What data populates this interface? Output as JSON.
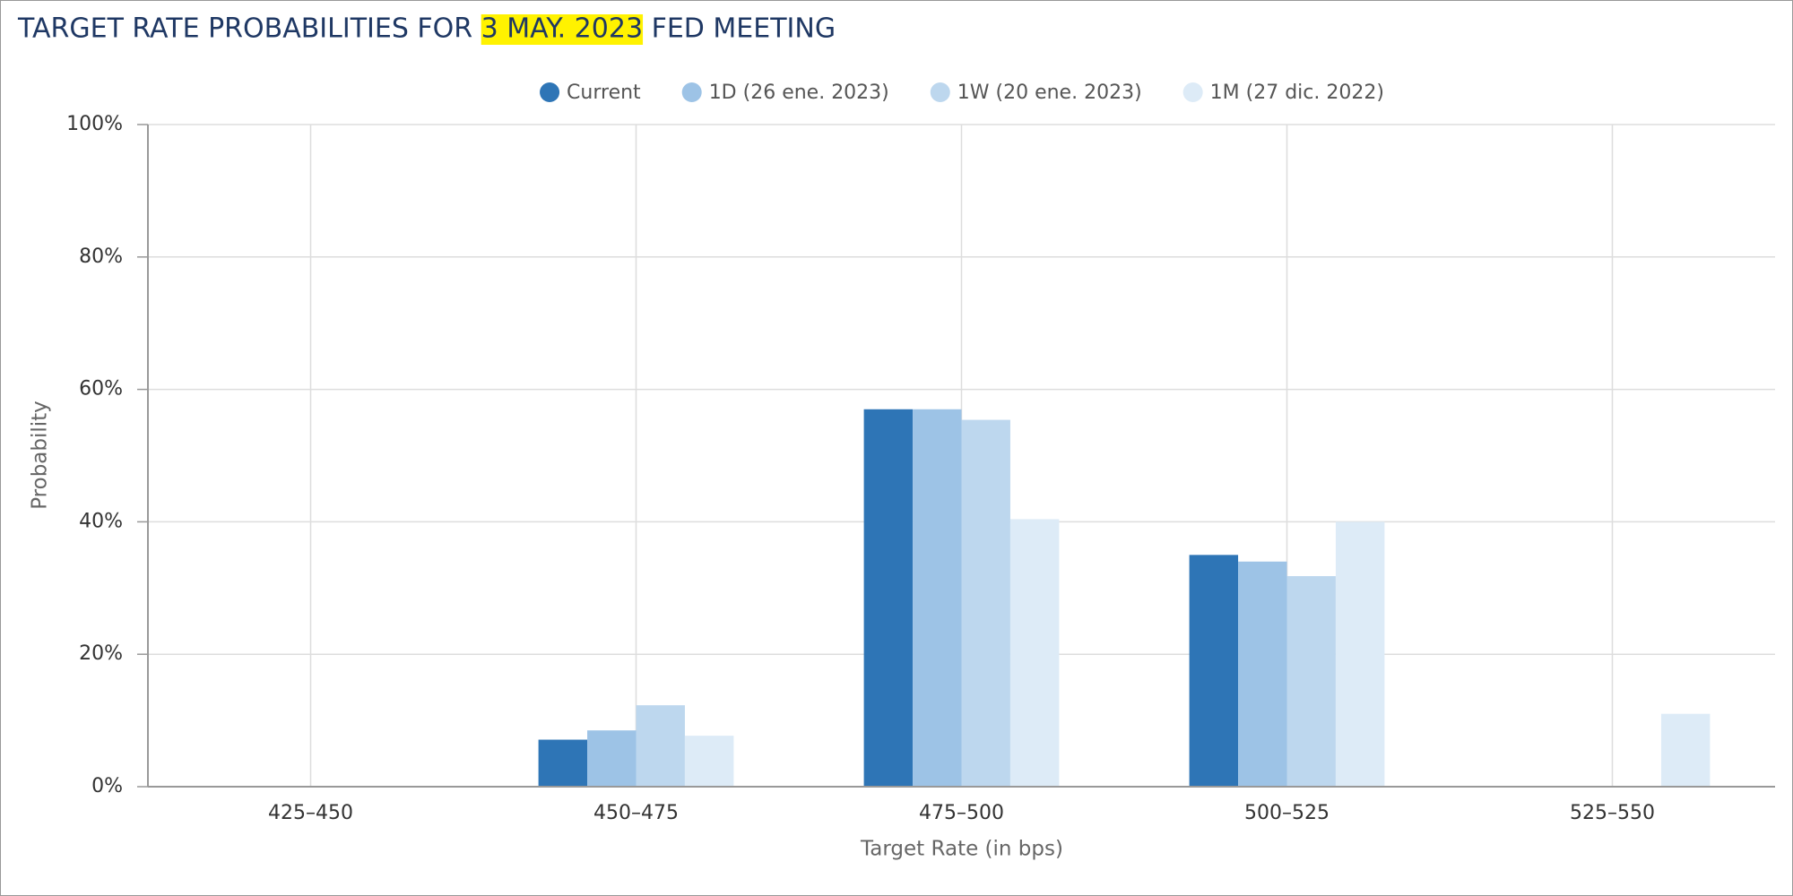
{
  "chart_data": {
    "type": "bar",
    "title": "TARGET RATE PROBABILITIES FOR 3 MAY. 2023 FED MEETING",
    "highlight": "3 MAY. 2023",
    "x_label": "Target Rate (in bps)",
    "y_label": "Probability",
    "categories": [
      "425–450",
      "450–475",
      "475–500",
      "500–525",
      "525–550"
    ],
    "series": [
      {
        "name": "Current",
        "color": "#2e75b6",
        "values": [
          0,
          7.1,
          57,
          35,
          0
        ]
      },
      {
        "name": "1D (26 ene. 2023)",
        "color": "#9dc3e6",
        "values": [
          0,
          8.5,
          57,
          34,
          0
        ]
      },
      {
        "name": "1W (20 ene. 2023)",
        "color": "#bdd7ee",
        "values": [
          0,
          12.3,
          55.4,
          31.8,
          0
        ]
      },
      {
        "name": "1M (27 dic. 2022)",
        "color": "#ddebf7",
        "values": [
          0,
          7.7,
          40.4,
          40,
          11
        ]
      }
    ],
    "ylim": [
      0,
      100
    ],
    "yticks": [
      {
        "value": 0,
        "label": "0%"
      },
      {
        "value": 20,
        "label": "20%"
      },
      {
        "value": 40,
        "label": "40%"
      },
      {
        "value": 60,
        "label": "60%"
      },
      {
        "value": 80,
        "label": "80%"
      },
      {
        "value": 100,
        "label": "100%"
      }
    ],
    "grid": true
  }
}
